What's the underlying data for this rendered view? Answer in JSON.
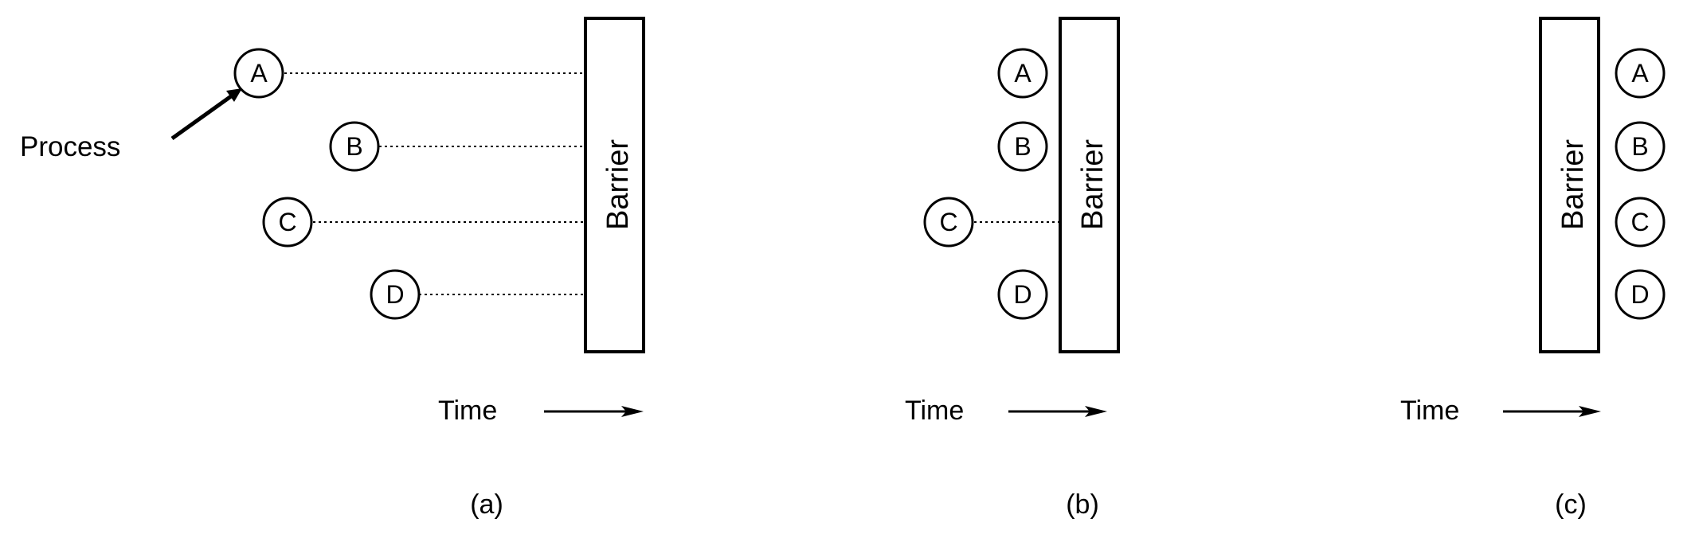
{
  "process_label": "Process",
  "barrier_label": "Barrier",
  "time_label": "Time",
  "panels": [
    {
      "caption": "(a)",
      "processes": [
        {
          "id": "A",
          "waiting": true
        },
        {
          "id": "B",
          "waiting": true
        },
        {
          "id": "C",
          "waiting": true
        },
        {
          "id": "D",
          "waiting": true
        }
      ]
    },
    {
      "caption": "(b)",
      "processes": [
        {
          "id": "A",
          "waiting": false
        },
        {
          "id": "B",
          "waiting": false
        },
        {
          "id": "C",
          "waiting": true
        },
        {
          "id": "D",
          "waiting": false
        }
      ]
    },
    {
      "caption": "(c)",
      "processes": [
        {
          "id": "A",
          "waiting": false
        },
        {
          "id": "B",
          "waiting": false
        },
        {
          "id": "C",
          "waiting": false
        },
        {
          "id": "D",
          "waiting": false
        }
      ]
    }
  ]
}
